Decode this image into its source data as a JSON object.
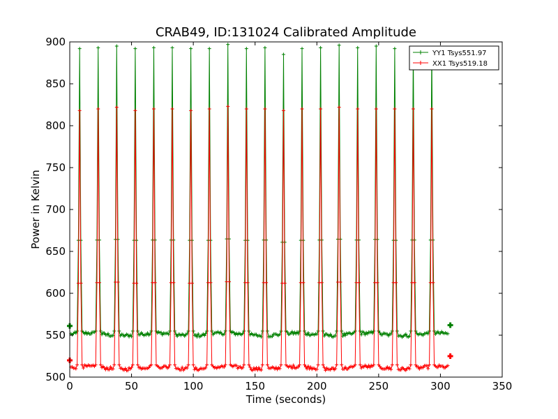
{
  "chart_data": {
    "type": "line",
    "title": "CRAB49, ID:131024 Calibrated Amplitude",
    "xlabel": "Time (seconds)",
    "ylabel": "Power in Kelvin",
    "xlim": [
      0,
      350
    ],
    "ylim": [
      500,
      900
    ],
    "xticks": [
      0,
      50,
      100,
      150,
      200,
      250,
      300,
      350
    ],
    "yticks": [
      500,
      550,
      600,
      650,
      700,
      750,
      800,
      850,
      900
    ],
    "grid": false,
    "legend_position": "top-right",
    "sample_interval_s": 1,
    "peak_times_s": [
      8,
      23,
      38,
      53,
      68,
      83,
      98,
      113,
      128,
      143,
      158,
      173,
      188,
      203,
      218,
      233,
      248,
      263,
      278,
      293
    ],
    "series": [
      {
        "name": "YY1 Tsys551.97",
        "color": "#008000",
        "baseline": 551,
        "peaks": [
          892,
          893,
          895,
          892,
          893,
          893,
          892,
          892,
          897,
          892,
          893,
          885,
          892,
          893,
          896,
          893,
          895,
          892,
          893,
          893
        ],
        "end_points": [
          [
            0,
            561
          ],
          [
            308,
            562
          ]
        ]
      },
      {
        "name": "XX1 Tsys519.18",
        "color": "#ff0000",
        "baseline": 511,
        "peaks": [
          818,
          820,
          822,
          818,
          820,
          820,
          818,
          820,
          823,
          820,
          820,
          818,
          820,
          820,
          822,
          820,
          820,
          820,
          820,
          820
        ],
        "end_points": [
          [
            0,
            520
          ],
          [
            308,
            525
          ]
        ]
      }
    ]
  }
}
